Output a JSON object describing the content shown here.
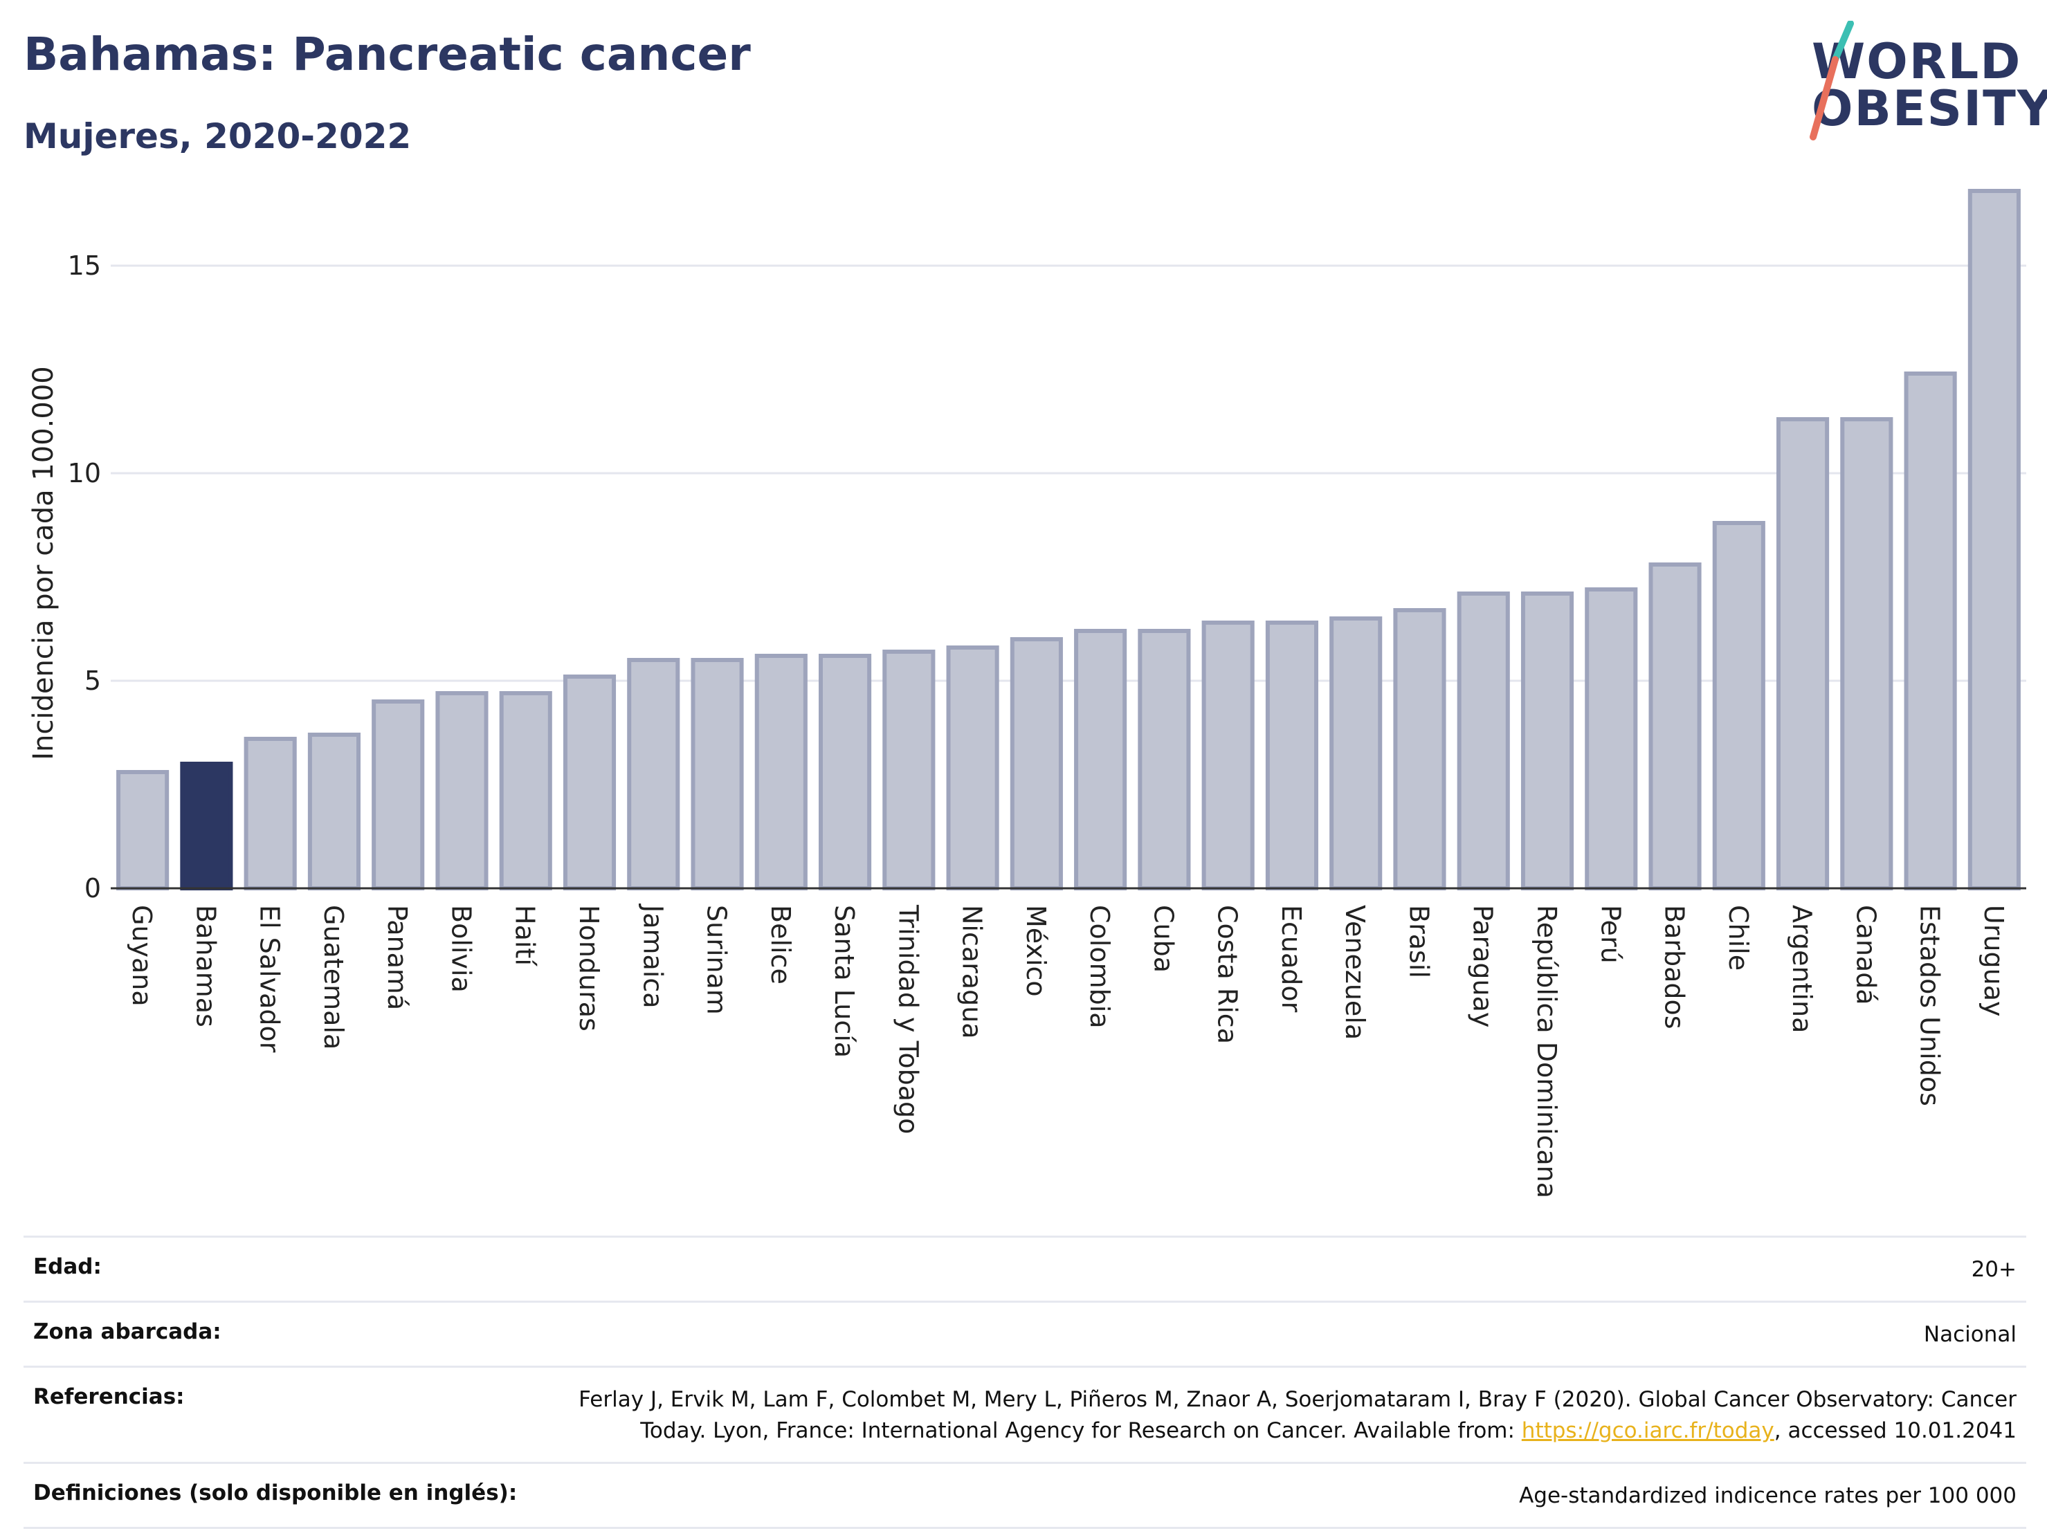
{
  "header": {
    "title": "Bahamas: Pancreatic cancer",
    "subtitle": "Mujeres, 2020-2022"
  },
  "logo": {
    "line1": "WORLD",
    "line2": "OBESITY",
    "colors": {
      "text": "#2c3762",
      "slash_top": "#3cbfb3",
      "slash_bottom": "#e8705c"
    }
  },
  "chart_data": {
    "type": "bar",
    "ylabel": "Incidencia por cada 100.000",
    "xlabel": "",
    "ylim": [
      0,
      17
    ],
    "yticks": [
      0,
      5,
      10,
      15
    ],
    "grid": true,
    "highlight": "Bahamas",
    "colors": {
      "bar": "#c0c4d2",
      "bar_stroke": "#9ea4bc",
      "highlight": "#2c3762",
      "grid": "#e4e6ee",
      "axis": "#333333"
    },
    "categories": [
      "Guyana",
      "Bahamas",
      "El Salvador",
      "Guatemala",
      "Panamá",
      "Bolivia",
      "Haití",
      "Honduras",
      "Jamaica",
      "Surinam",
      "Belice",
      "Santa Lucía",
      "Trinidad y Tobago",
      "Nicaragua",
      "México",
      "Colombia",
      "Cuba",
      "Costa Rica",
      "Ecuador",
      "Venezuela",
      "Brasil",
      "Paraguay",
      "República Dominicana",
      "Perú",
      "Barbados",
      "Chile",
      "Argentina",
      "Canadá",
      "Estados Unidos",
      "Uruguay"
    ],
    "values": [
      2.8,
      3.0,
      3.6,
      3.7,
      4.5,
      4.7,
      4.7,
      5.1,
      5.5,
      5.5,
      5.6,
      5.6,
      5.7,
      5.8,
      6.0,
      6.2,
      6.2,
      6.4,
      6.4,
      6.5,
      6.7,
      7.1,
      7.1,
      7.2,
      7.8,
      8.8,
      11.3,
      11.3,
      12.4,
      16.8
    ]
  },
  "info": {
    "edad_label": "Edad:",
    "edad_value": "20+",
    "zona_label": "Zona abarcada:",
    "zona_value": "Nacional",
    "ref_label": "Referencias:",
    "ref_line1": "Ferlay J, Ervik M, Lam F, Colombet M, Mery L, Piñeros M, Znaor A, Soerjomataram I, Bray F (2020). Global Cancer Observatory: Cancer",
    "ref_line2_pre": "Today. Lyon, France: International Agency for Research on Cancer. Available from: ",
    "ref_link": "https://gco.iarc.fr/today",
    "ref_line2_post": ", accessed 10.01.2041",
    "def_label": "Definiciones (solo disponible en inglés):",
    "def_value": "Age-standardized indicence rates per 100 000"
  }
}
